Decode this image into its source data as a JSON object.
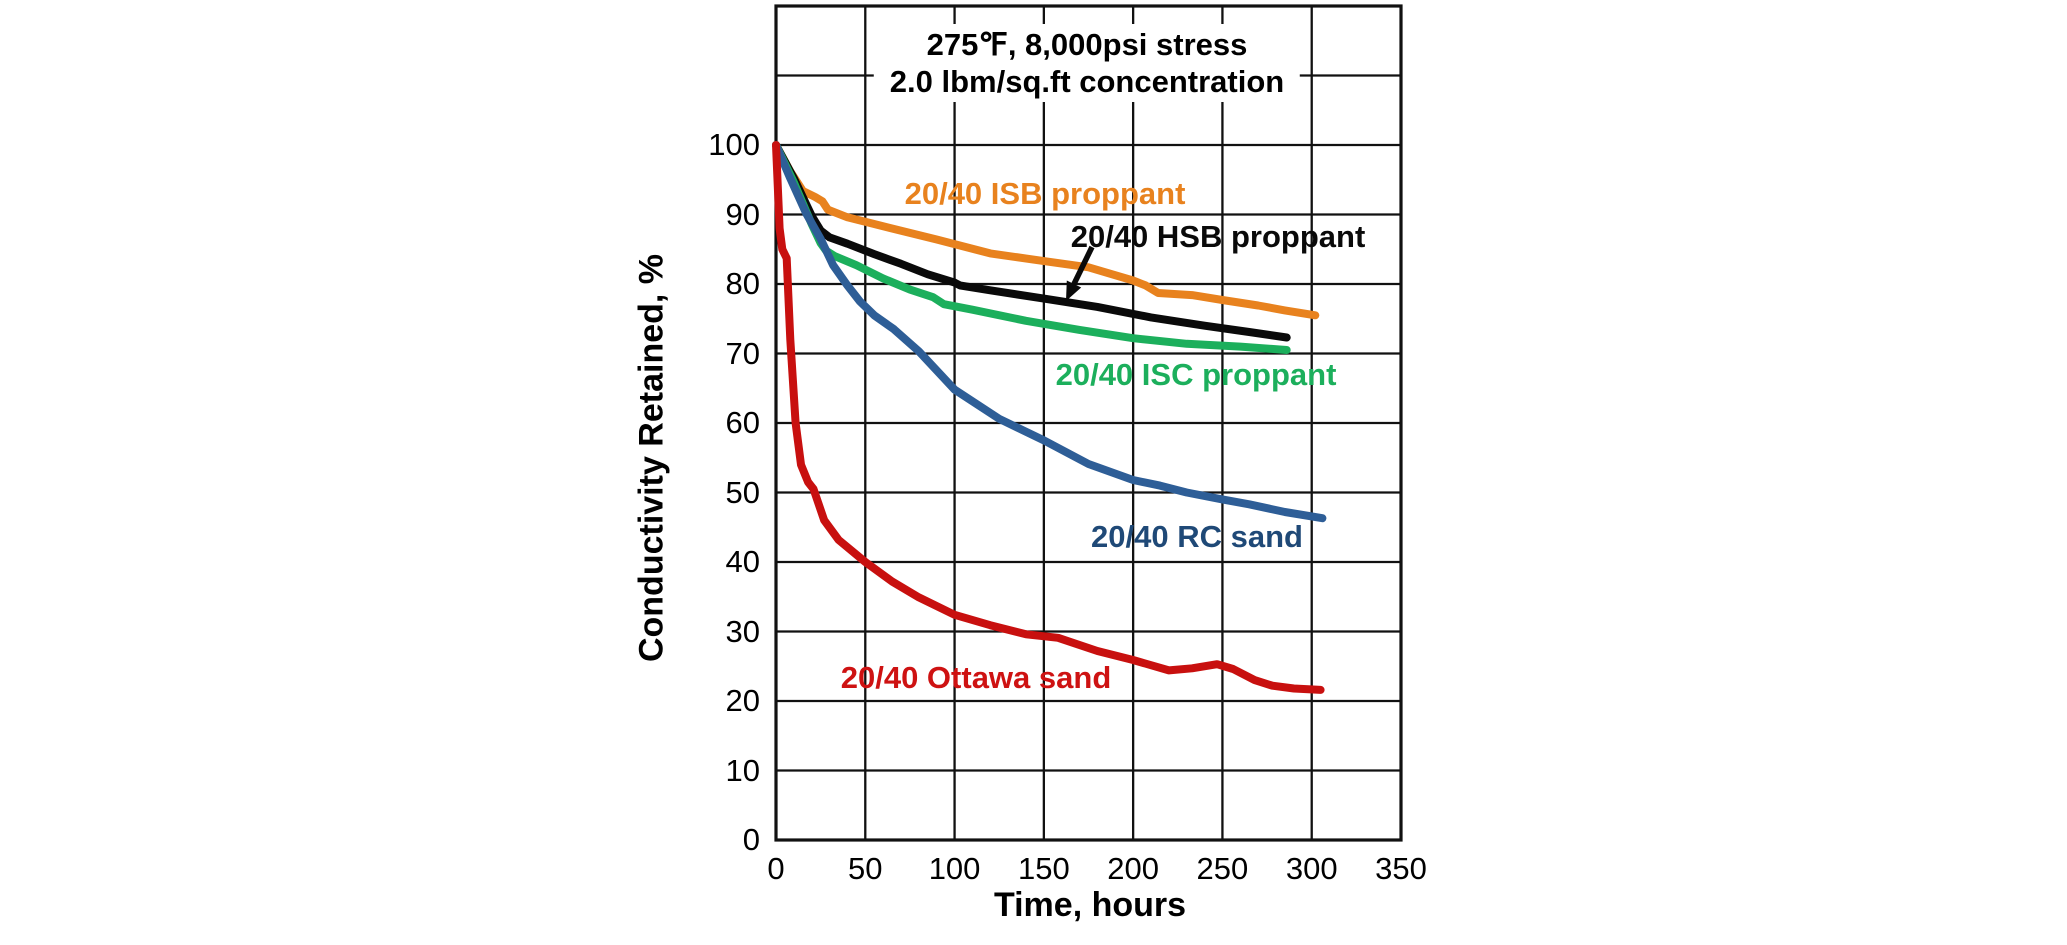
{
  "page": {
    "background": "#ffffff"
  },
  "chart_data": {
    "type": "line",
    "title_lines": [
      "275℉, 8,000psi stress",
      "2.0 lbm/sq.ft concentration"
    ],
    "xlabel": "Time, hours",
    "ylabel": "Conductivity Retained, %",
    "xlim": [
      0,
      350
    ],
    "ylim": [
      0,
      120
    ],
    "x_ticks": [
      0,
      50,
      100,
      150,
      200,
      250,
      300,
      350
    ],
    "y_ticks": [
      0,
      10,
      20,
      30,
      40,
      50,
      60,
      70,
      80,
      90,
      100
    ],
    "y_grid_step": 10,
    "grid": "major grid on, both axes, black lines, framed border",
    "legend_position": "inline labels next to curves",
    "annotation_arrow": "black arrow from HSB label pointing down-left to the black curve",
    "series": [
      {
        "id": "isb",
        "name": "20/40 ISB proppant",
        "color": "#E8821E",
        "label_color": "#E8821E",
        "points": [
          [
            0,
            100
          ],
          [
            8,
            96.2
          ],
          [
            15,
            93.4
          ],
          [
            22,
            92.5
          ],
          [
            26,
            91.9
          ],
          [
            29,
            90.7
          ],
          [
            40,
            89.6
          ],
          [
            60,
            88.3
          ],
          [
            90,
            86.4
          ],
          [
            120,
            84.4
          ],
          [
            150,
            83.3
          ],
          [
            175,
            82.4
          ],
          [
            200,
            80.5
          ],
          [
            207,
            79.8
          ],
          [
            214,
            78.7
          ],
          [
            233,
            78.4
          ],
          [
            250,
            77.7
          ],
          [
            270,
            76.9
          ],
          [
            285,
            76.2
          ],
          [
            302,
            75.5
          ]
        ]
      },
      {
        "id": "hsb",
        "name": "20/40 HSB proppant",
        "color": "#0A0A0A",
        "label_color": "#0A0A0A",
        "points": [
          [
            0,
            100
          ],
          [
            10,
            95.2
          ],
          [
            20,
            89.8
          ],
          [
            25,
            87.7
          ],
          [
            30,
            86.7
          ],
          [
            40,
            85.8
          ],
          [
            55,
            84.3
          ],
          [
            70,
            82.9
          ],
          [
            85,
            81.4
          ],
          [
            100,
            80.2
          ],
          [
            103,
            79.8
          ],
          [
            120,
            79.1
          ],
          [
            150,
            77.9
          ],
          [
            180,
            76.7
          ],
          [
            210,
            75.2
          ],
          [
            240,
            74
          ],
          [
            265,
            73.1
          ],
          [
            286,
            72.3
          ]
        ]
      },
      {
        "id": "isc",
        "name": "20/40 ISC proppant",
        "color": "#1CAF5C",
        "label_color": "#1CAF5C",
        "points": [
          [
            0,
            100
          ],
          [
            10,
            94.6
          ],
          [
            20,
            88.6
          ],
          [
            25,
            85.9
          ],
          [
            28,
            84.8
          ],
          [
            33,
            84
          ],
          [
            45,
            82.7
          ],
          [
            60,
            80.8
          ],
          [
            75,
            79.2
          ],
          [
            88,
            78.1
          ],
          [
            94,
            77.1
          ],
          [
            110,
            76.3
          ],
          [
            140,
            74.7
          ],
          [
            170,
            73.4
          ],
          [
            200,
            72.2
          ],
          [
            230,
            71.4
          ],
          [
            260,
            71
          ],
          [
            286,
            70.5
          ]
        ]
      },
      {
        "id": "rc",
        "name": "20/40 RC sand",
        "color": "#2E5E97",
        "label_color": "#1F4977",
        "points": [
          [
            0,
            100
          ],
          [
            8,
            95.2
          ],
          [
            17,
            90.1
          ],
          [
            25,
            86.5
          ],
          [
            32,
            82.7
          ],
          [
            40,
            79.8
          ],
          [
            47,
            77.5
          ],
          [
            55,
            75.5
          ],
          [
            66,
            73.5
          ],
          [
            80,
            70.3
          ],
          [
            100,
            64.8
          ],
          [
            125,
            60.6
          ],
          [
            150,
            57.5
          ],
          [
            175,
            54.1
          ],
          [
            200,
            51.8
          ],
          [
            215,
            51
          ],
          [
            230,
            50
          ],
          [
            250,
            49
          ],
          [
            265,
            48.3
          ],
          [
            285,
            47.2
          ],
          [
            306,
            46.3
          ]
        ]
      },
      {
        "id": "ottawa",
        "name": "20/40 Ottawa sand",
        "color": "#C8100F",
        "label_color": "#CE1212",
        "points": [
          [
            0,
            100
          ],
          [
            2,
            88
          ],
          [
            3.5,
            85
          ],
          [
            6,
            83.7
          ],
          [
            8,
            72
          ],
          [
            11,
            60
          ],
          [
            14,
            54
          ],
          [
            18,
            51.5
          ],
          [
            21,
            50.5
          ],
          [
            27,
            46
          ],
          [
            35,
            43.2
          ],
          [
            50,
            40
          ],
          [
            65,
            37.2
          ],
          [
            80,
            34.9
          ],
          [
            100,
            32.4
          ],
          [
            120,
            30.9
          ],
          [
            140,
            29.6
          ],
          [
            158,
            29.1
          ],
          [
            180,
            27.2
          ],
          [
            200,
            25.9
          ],
          [
            220,
            24.4
          ],
          [
            233,
            24.7
          ],
          [
            247,
            25.3
          ],
          [
            256,
            24.6
          ],
          [
            268,
            23
          ],
          [
            278,
            22.2
          ],
          [
            290,
            21.8
          ],
          [
            305,
            21.6
          ]
        ]
      }
    ]
  }
}
